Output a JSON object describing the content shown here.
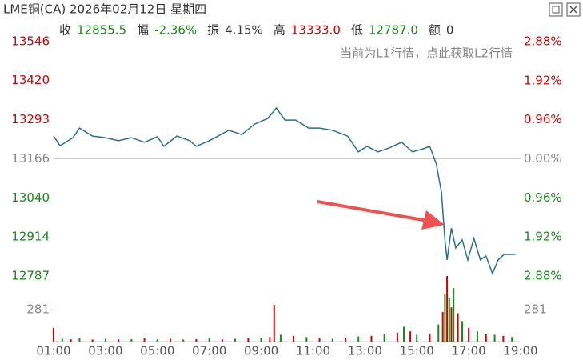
{
  "chart_data": {
    "type": "line",
    "title": "LME铜(CA) 2026年02月12日 星期四",
    "info": [
      {
        "label": "收",
        "value": "12855.5",
        "color": "#1a8a1a"
      },
      {
        "label": "幅",
        "value": "-2.36%",
        "color": "#1a8a1a"
      },
      {
        "label": "振",
        "value": "4.15%",
        "color": "#333333"
      },
      {
        "label": "高",
        "value": "13333.0",
        "color": "#d40000"
      },
      {
        "label": "低",
        "value": "12787.0",
        "color": "#1a8a1a"
      },
      {
        "label": "额",
        "value": "0",
        "color": "#333333"
      }
    ],
    "note": "当前为L1行情，点此获取L2行情",
    "color": "#2b6e8f",
    "up_color": "#d40000",
    "down_color": "#1a8a1a",
    "flat_color": "#888888",
    "x": [
      "01:00",
      "01:15",
      "01:45",
      "02:00",
      "02:30",
      "03:00",
      "03:30",
      "04:00",
      "04:30",
      "05:00",
      "05:15",
      "05:45",
      "06:15",
      "06:30",
      "07:00",
      "07:45",
      "08:15",
      "08:45",
      "09:15",
      "09:35",
      "09:55",
      "10:20",
      "10:50",
      "11:15",
      "11:45",
      "12:20",
      "12:45",
      "13:05",
      "13:30",
      "13:55",
      "14:25",
      "14:50",
      "15:15",
      "15:30",
      "15:45",
      "15:57",
      "16:05",
      "16:10",
      "16:20",
      "16:30",
      "16:45",
      "16:58",
      "17:12",
      "17:27",
      "17:40",
      "17:55",
      "18:08",
      "18:22",
      "18:48"
    ],
    "values": [
      13240,
      13209,
      13235,
      13266,
      13240,
      13235,
      13225,
      13235,
      13220,
      13238,
      13207,
      13240,
      13225,
      13207,
      13225,
      13259,
      13245,
      13279,
      13297,
      13331,
      13292,
      13292,
      13266,
      13266,
      13259,
      13240,
      13189,
      13207,
      13189,
      13201,
      13220,
      13189,
      13199,
      13207,
      13150,
      13059,
      12904,
      12839,
      12942,
      12878,
      12904,
      12839,
      12909,
      12839,
      12852,
      12795,
      12839,
      12857,
      12857
    ],
    "xlim": [
      "01:00",
      "19:00"
    ],
    "xticks": [
      "01:00",
      "03:00",
      "05:00",
      "07:00",
      "09:00",
      "11:00",
      "13:00",
      "15:00",
      "17:00",
      "19:00"
    ],
    "ylim": [
      12787,
      13546
    ],
    "yticks": [
      13546,
      13420,
      13293,
      13166,
      13040,
      12914,
      12787
    ],
    "y2lim": [
      -2.88,
      2.88
    ],
    "y2ticks": [
      {
        "value": 2.88,
        "label": "2.88%"
      },
      {
        "value": 1.92,
        "label": "1.92%"
      },
      {
        "value": 0.96,
        "label": "0.96%"
      },
      {
        "value": 0,
        "label": "0.00%"
      },
      {
        "value": -0.96,
        "label": "0.96%"
      },
      {
        "value": -1.92,
        "label": "1.92%"
      },
      {
        "value": -2.88,
        "label": "2.88%"
      }
    ],
    "volume": {
      "x": [
        "01:00",
        "01:20",
        "01:40",
        "02:00",
        "02:30",
        "03:00",
        "03:30",
        "04:00",
        "04:30",
        "05:00",
        "05:30",
        "06:00",
        "06:30",
        "07:00",
        "07:30",
        "08:00",
        "08:30",
        "09:00",
        "09:20",
        "09:30",
        "09:45",
        "10:15",
        "10:45",
        "11:15",
        "11:45",
        "12:15",
        "12:45",
        "13:15",
        "13:45",
        "14:15",
        "14:30",
        "14:45",
        "15:00",
        "15:30",
        "15:50",
        "16:00",
        "16:05",
        "16:10",
        "16:15",
        "16:20",
        "16:25",
        "16:35",
        "16:45",
        "17:00",
        "17:20",
        "17:40",
        "18:00",
        "18:20",
        "18:40"
      ],
      "values": [
        120,
        25,
        20,
        30,
        18,
        25,
        20,
        22,
        28,
        20,
        25,
        18,
        22,
        30,
        20,
        25,
        30,
        35,
        40,
        322,
        60,
        50,
        40,
        30,
        25,
        35,
        45,
        50,
        70,
        80,
        130,
        90,
        60,
        70,
        150,
        260,
        420,
        576,
        380,
        300,
        470,
        250,
        180,
        120,
        90,
        70,
        60,
        50,
        40
      ],
      "colors": [
        "#d40000",
        "#1a8a1a",
        "#d40000",
        "#1a8a1a",
        "#d40000",
        "#1a8a1a",
        "#d40000",
        "#1a8a1a",
        "#d40000",
        "#1a8a1a",
        "#d40000",
        "#1a8a1a",
        "#d40000",
        "#1a8a1a",
        "#d40000",
        "#1a8a1a",
        "#d40000",
        "#1a8a1a",
        "#d40000",
        "#d40000",
        "#1a8a1a",
        "#d40000",
        "#1a8a1a",
        "#d40000",
        "#1a8a1a",
        "#d40000",
        "#1a8a1a",
        "#d40000",
        "#1a8a1a",
        "#d40000",
        "#1a8a1a",
        "#d40000",
        "#1a8a1a",
        "#d40000",
        "#1a8a1a",
        "#d40000",
        "#1a8a1a",
        "#d40000",
        "#1a8a1a",
        "#d40000",
        "#1a8a1a",
        "#d40000",
        "#1a8a1a",
        "#d40000",
        "#1a8a1a",
        "#d40000",
        "#1a8a1a",
        "#d40000",
        "#1a8a1a"
      ],
      "ylim": [
        0,
        576
      ],
      "yticks": [
        281
      ]
    }
  }
}
